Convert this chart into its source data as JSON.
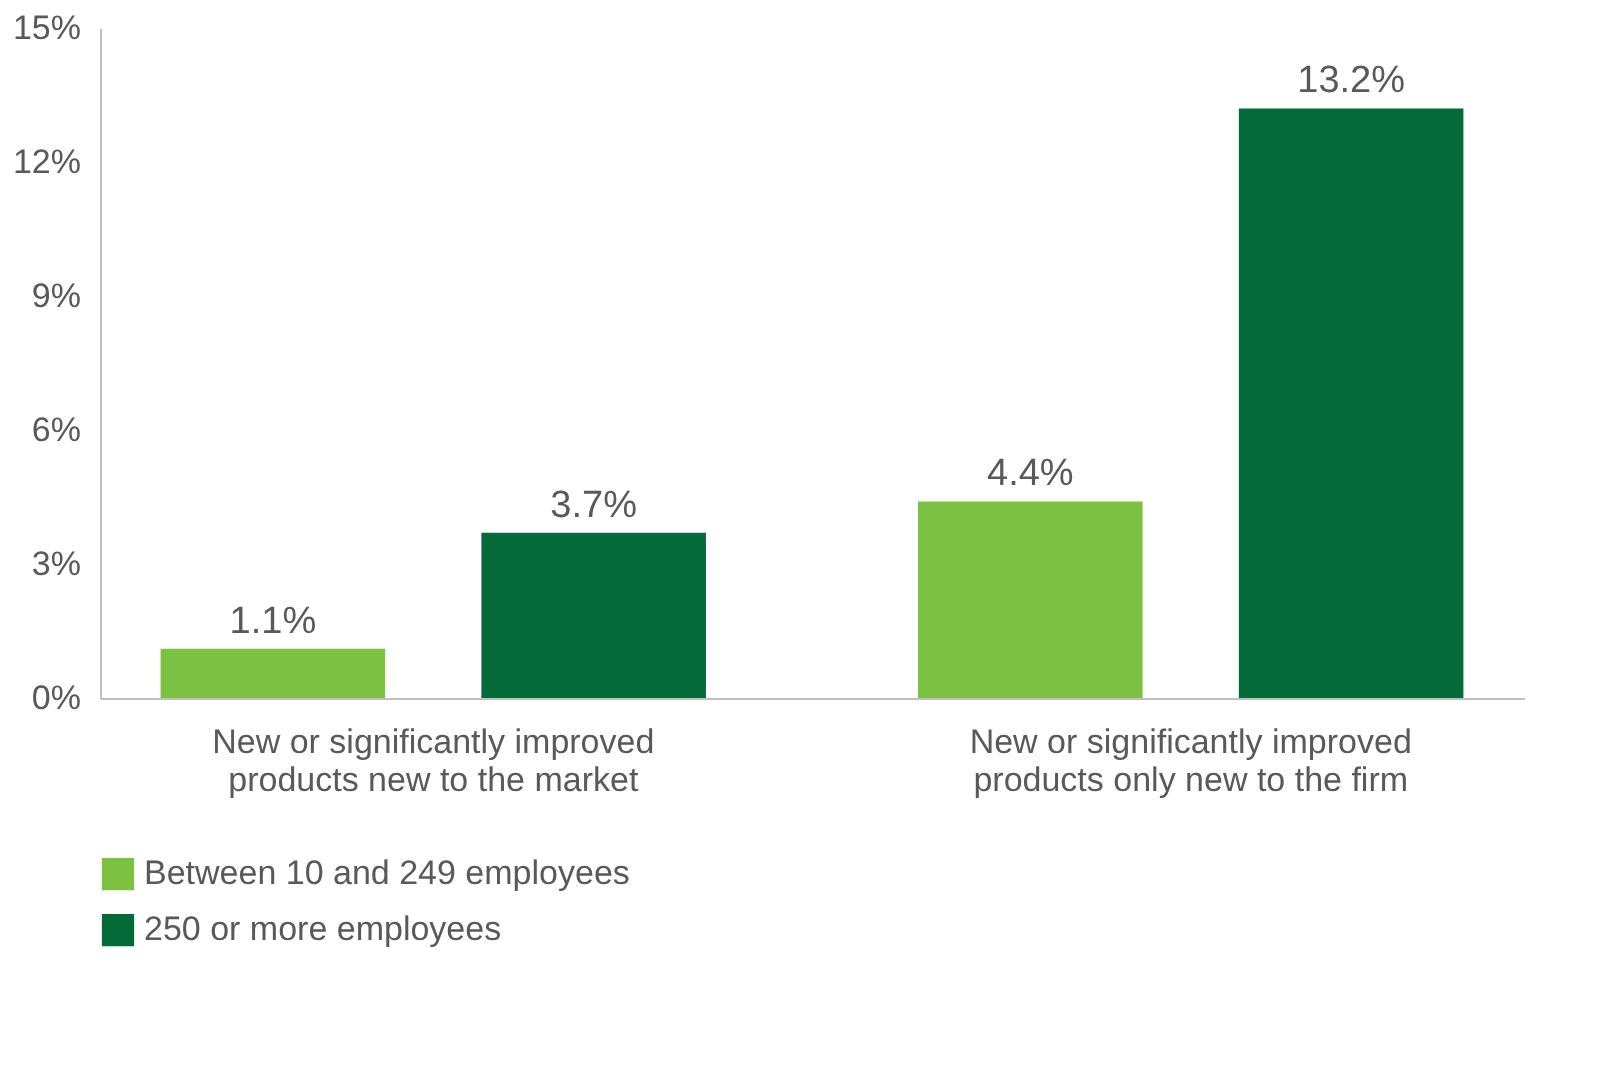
{
  "chart_data": {
    "type": "bar",
    "categories": [
      "New or significantly improved products new to the market",
      "New or significantly improved products only new to the firm"
    ],
    "series": [
      {
        "name": "Between 10 and 249 employees",
        "color": "#7dc142",
        "values": [
          1.1,
          4.4
        ],
        "value_labels": [
          "1.1%",
          "4.4%"
        ]
      },
      {
        "name": "250 or more employees",
        "color": "#046a38",
        "values": [
          3.7,
          13.2
        ],
        "value_labels": [
          "3.7%",
          "13.2%"
        ]
      }
    ],
    "ylim": [
      0,
      15
    ],
    "yticks": [
      {
        "value": 0,
        "label": "0%"
      },
      {
        "value": 3,
        "label": "3%"
      },
      {
        "value": 6,
        "label": "6%"
      },
      {
        "value": 9,
        "label": "9%"
      },
      {
        "value": 12,
        "label": "12%"
      },
      {
        "value": 15,
        "label": "15%"
      }
    ],
    "grid": false,
    "legend": "bottom"
  }
}
